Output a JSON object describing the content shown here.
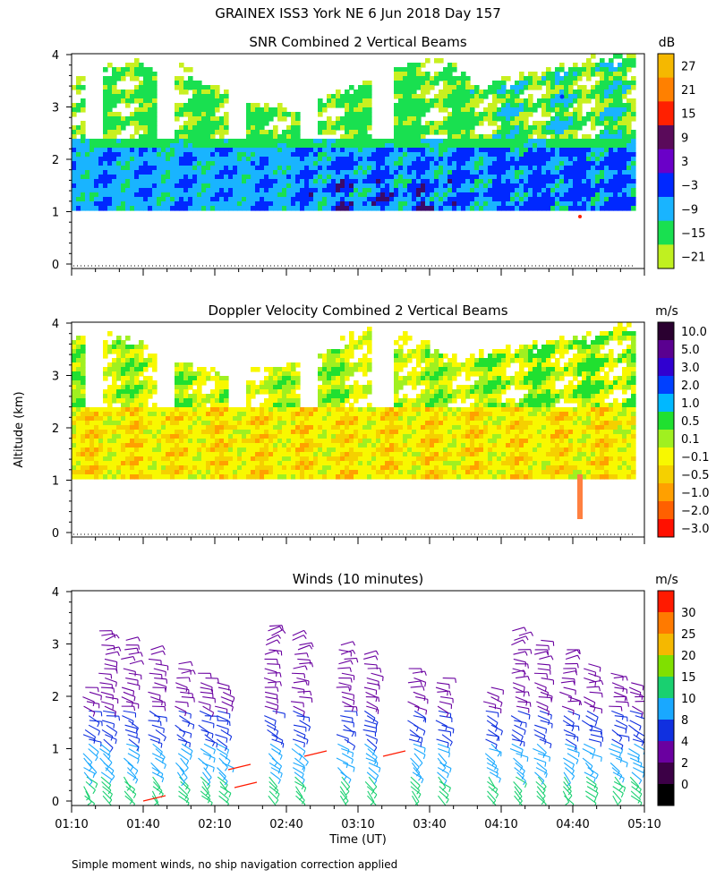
{
  "page_title": "GRAINEX ISS3 York NE   6 Jun 2018 Day 157",
  "footer_note": "Simple moment winds, no ship navigation correction applied",
  "y_axis_label": "Altitude (km)",
  "x_axis_label": "Time (UT)",
  "chart_data": [
    {
      "type": "heatmap",
      "title": "SNR Combined 2 Vertical Beams",
      "ylabel": "Altitude (km)",
      "xlabel": "Time (UT)",
      "x_ticks": [
        "01:10",
        "01:40",
        "02:10",
        "02:40",
        "03:10",
        "03:40",
        "04:10",
        "04:40",
        "05:10"
      ],
      "y_ticks": [
        "0",
        "1",
        "2",
        "3",
        "4"
      ],
      "ylim": [
        0,
        4
      ],
      "colorbar": {
        "unit": "dB",
        "labels": [
          "27",
          "21",
          "15",
          "9",
          "3",
          "−3",
          "−9",
          "−15",
          "−21"
        ],
        "colors": [
          "#f5b800",
          "#ff8000",
          "#ff2000",
          "#5a0a5a",
          "#6a00c8",
          "#0028ff",
          "#19b4ff",
          "#19e050",
          "#c0f020"
        ]
      }
    },
    {
      "type": "heatmap",
      "title": "Doppler Velocity Combined 2 Vertical Beams",
      "ylabel": "Altitude (km)",
      "xlabel": "Time (UT)",
      "x_ticks": [
        "01:10",
        "01:40",
        "02:10",
        "02:40",
        "03:10",
        "03:40",
        "04:10",
        "04:40",
        "05:10"
      ],
      "y_ticks": [
        "0",
        "1",
        "2",
        "3",
        "4"
      ],
      "ylim": [
        0,
        4
      ],
      "colorbar": {
        "unit": "m/s",
        "labels": [
          "10.0",
          "5.0",
          "3.0",
          "2.0",
          "1.0",
          "0.5",
          "0.1",
          "−0.1",
          "−0.5",
          "−1.0",
          "−2.0",
          "−3.0"
        ],
        "colors": [
          "#2a0030",
          "#5a0090",
          "#3000d0",
          "#0040ff",
          "#00b8ff",
          "#20e030",
          "#a0f020",
          "#f8f800",
          "#f5d000",
          "#ffa000",
          "#ff6000",
          "#ff1000"
        ]
      }
    },
    {
      "type": "scatter",
      "title": "Winds (10 minutes)",
      "ylabel": "Altitude (km)",
      "xlabel": "Time (UT)",
      "x_ticks": [
        "01:10",
        "01:40",
        "02:10",
        "02:40",
        "03:10",
        "03:40",
        "04:10",
        "04:40",
        "05:10"
      ],
      "y_ticks": [
        "0",
        "1",
        "2",
        "3",
        "4"
      ],
      "ylim": [
        0,
        4
      ],
      "colorbar": {
        "unit": "m/s",
        "labels": [
          "30",
          "25",
          "20",
          "15",
          "10",
          "8",
          "4",
          "2",
          "0"
        ],
        "colors": [
          "#ff1a00",
          "#ff7a00",
          "#f5b800",
          "#80e000",
          "#19d070",
          "#19a8ff",
          "#1030e0",
          "#6a00a0",
          "#3c0046",
          "#000000"
        ]
      }
    }
  ]
}
